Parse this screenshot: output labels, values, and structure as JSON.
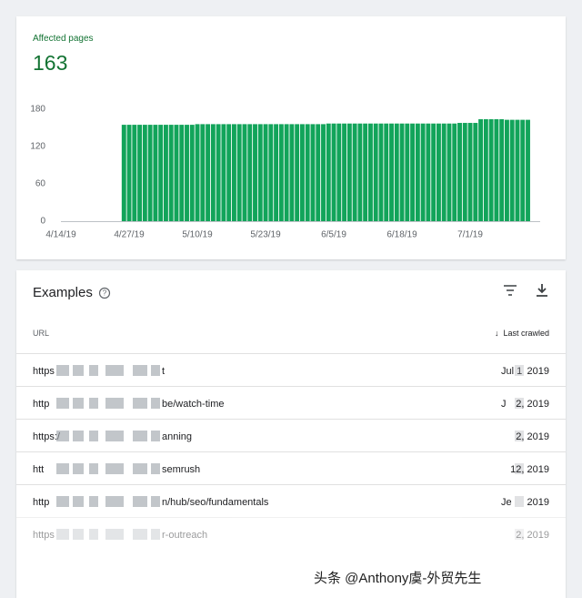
{
  "summary": {
    "label": "Affected pages",
    "value": 163
  },
  "chart_data": {
    "type": "bar",
    "color": "#12a45a",
    "grid": false,
    "categories": [
      "4/14/19",
      null,
      null,
      null,
      null,
      null,
      null,
      null,
      null,
      null,
      null,
      null,
      null,
      "4/27/19",
      null,
      null,
      null,
      null,
      null,
      null,
      null,
      null,
      null,
      null,
      null,
      null,
      "5/10/19",
      null,
      null,
      null,
      null,
      null,
      null,
      null,
      null,
      null,
      null,
      null,
      null,
      "5/23/19",
      null,
      null,
      null,
      null,
      null,
      null,
      null,
      null,
      null,
      null,
      null,
      null,
      "6/5/19",
      null,
      null,
      null,
      null,
      null,
      null,
      null,
      null,
      null,
      null,
      null,
      null,
      "6/18/19",
      null,
      null,
      null,
      null,
      null,
      null,
      null,
      null,
      null,
      null,
      null,
      null,
      "7/1/19",
      null,
      null,
      null,
      null,
      null,
      null,
      null,
      null,
      null,
      null,
      null
    ],
    "values": [
      null,
      null,
      null,
      null,
      null,
      null,
      null,
      null,
      null,
      null,
      null,
      null,
      155,
      155,
      155,
      155,
      155,
      155,
      155,
      155,
      155,
      155,
      155,
      155,
      155,
      155,
      156,
      156,
      156,
      156,
      156,
      156,
      156,
      156,
      156,
      156,
      156,
      156,
      156,
      156,
      156,
      156,
      156,
      156,
      156,
      156,
      156,
      156,
      156,
      156,
      156,
      157,
      157,
      157,
      157,
      157,
      157,
      157,
      157,
      157,
      157,
      157,
      157,
      157,
      157,
      157,
      157,
      157,
      157,
      157,
      157,
      157,
      157,
      157,
      157,
      157,
      158,
      158,
      158,
      158,
      164,
      164,
      164,
      164,
      164,
      163,
      163,
      163,
      163,
      163
    ],
    "ylim": [
      0,
      180
    ],
    "yticks": [
      0,
      60,
      120,
      180
    ]
  },
  "examples": {
    "title": "Examples",
    "columns": [
      "URL",
      "Last crawled"
    ],
    "rows": [
      {
        "url_start": "https",
        "url_end": "t",
        "date_start": "Jul 1",
        "date_end": "2019"
      },
      {
        "url_start": "http",
        "url_end": "be/watch-time",
        "date_start": "J",
        "date_end": "2, 2019"
      },
      {
        "url_start": "https:/",
        "url_end": "anning",
        "date_end": "2, 2019"
      },
      {
        "url_start": "htt",
        "url_end": "semrush",
        "date_end": "12, 2019"
      },
      {
        "url_start": "http",
        "url_end": "n/hub/seo/fundamentals",
        "date_start": "Je",
        "date_end": "2019"
      },
      {
        "url_start": "https",
        "url_end": "r-outreach",
        "date_end": "2, 2019"
      }
    ]
  },
  "watermark": "头条 @Anthony虞-外贸先生"
}
